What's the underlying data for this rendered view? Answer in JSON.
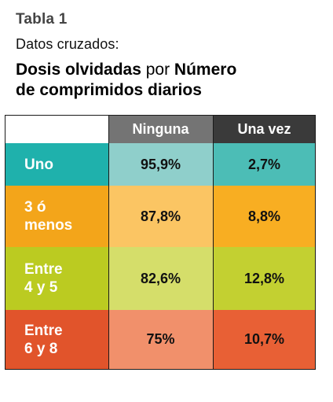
{
  "header": {
    "table_label": "Tabla 1",
    "subtitle": "Datos cruzados:",
    "title_part1": "Dosis olvidadas",
    "title_connector": " por ",
    "title_part2": "Número",
    "title_line2": "de comprimidos diarios"
  },
  "table": {
    "columns": [
      "Ninguna",
      "Una vez"
    ],
    "rows": [
      {
        "label": "Uno",
        "values": [
          "95,9%",
          "2,7%"
        ],
        "label_color": "#1fb1ac",
        "cell_colors": [
          "#8fcfcb",
          "#4cbdb6"
        ]
      },
      {
        "label": "3 ó\nmenos",
        "values": [
          "87,8%",
          "8,8%"
        ],
        "label_color": "#f3a51a",
        "cell_colors": [
          "#fbc563",
          "#f8ae22"
        ]
      },
      {
        "label": "Entre\n4 y 5",
        "values": [
          "82,6%",
          "12,8%"
        ],
        "label_color": "#bbcb21",
        "cell_colors": [
          "#d5de6a",
          "#c3d031"
        ]
      },
      {
        "label": "Entre\n6 y 8",
        "values": [
          "75%",
          "10,7%"
        ],
        "label_color": "#e1542b",
        "cell_colors": [
          "#f1906b",
          "#e86035"
        ]
      }
    ],
    "header_colors": {
      "corner": "#ffffff",
      "col1": "#747474",
      "col2": "#3a3a3a"
    }
  }
}
